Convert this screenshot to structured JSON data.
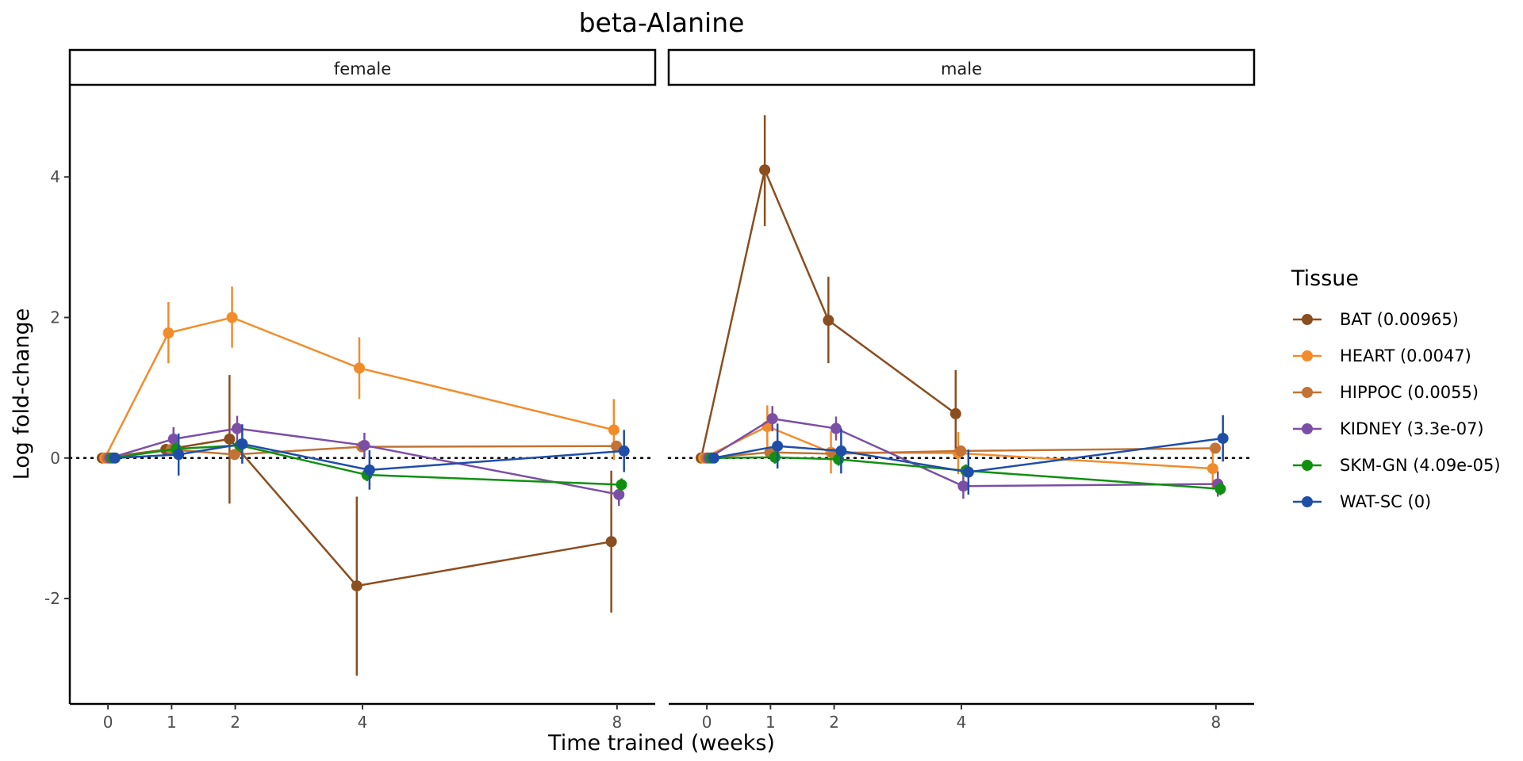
{
  "chart_data": {
    "type": "line",
    "title": "beta-Alanine",
    "xlabel": "Time trained (weeks)",
    "ylabel": "Log fold-change",
    "x_ticks": [
      0,
      1,
      2,
      4,
      8
    ],
    "y_ticks": [
      -2,
      0,
      2,
      4
    ],
    "y_tick_labels": [
      "-2",
      "0",
      "2",
      "4"
    ],
    "ylim": [
      -3.5,
      5.3
    ],
    "xlim": [
      -0.6,
      8.6
    ],
    "reference_line": 0,
    "legend_title": "Tissue",
    "legend_position": "right",
    "grid": false,
    "panels": [
      {
        "label": "female",
        "series": [
          {
            "name": "BAT (0.00965)",
            "color": "#8B4E1F",
            "x": [
              0,
              1,
              2,
              4,
              8
            ],
            "y": [
              0.0,
              0.12,
              0.27,
              -1.82,
              -1.19
            ],
            "lo": [
              0.0,
              0.05,
              -0.65,
              -3.1,
              -2.2
            ],
            "hi": [
              0.0,
              0.2,
              1.18,
              -0.55,
              -0.18
            ]
          },
          {
            "name": "HEART (0.0047)",
            "color": "#F28C2B",
            "x": [
              0,
              1,
              2,
              4,
              8
            ],
            "y": [
              0.0,
              1.78,
              2.0,
              1.28,
              0.4
            ],
            "lo": [
              0.0,
              1.35,
              1.57,
              0.84,
              -0.03
            ],
            "hi": [
              0.0,
              2.22,
              2.44,
              1.72,
              0.84
            ]
          },
          {
            "name": "HIPPOC (0.0055)",
            "color": "#C27335",
            "x": [
              0,
              1,
              2,
              4,
              8
            ],
            "y": [
              0.0,
              0.12,
              0.05,
              0.16,
              0.17
            ],
            "lo": [
              0.0,
              0.05,
              -0.02,
              0.09,
              0.1
            ],
            "hi": [
              0.0,
              0.19,
              0.12,
              0.23,
              0.24
            ]
          },
          {
            "name": "KIDNEY (3.3e-07)",
            "color": "#7B4FA6",
            "x": [
              0,
              1,
              2,
              4,
              8
            ],
            "y": [
              0.0,
              0.27,
              0.42,
              0.18,
              -0.52
            ],
            "lo": [
              0.0,
              0.1,
              0.24,
              0.0,
              -0.68
            ],
            "hi": [
              0.0,
              0.44,
              0.6,
              0.36,
              -0.36
            ]
          },
          {
            "name": "SKM-GN (4.09e-05)",
            "color": "#109010",
            "x": [
              0,
              1,
              2,
              4,
              8
            ],
            "y": [
              0.0,
              0.13,
              0.18,
              -0.24,
              -0.38
            ],
            "lo": [
              0.0,
              0.04,
              0.09,
              -0.33,
              -0.47
            ],
            "hi": [
              0.0,
              0.22,
              0.27,
              -0.15,
              -0.29
            ]
          },
          {
            "name": "WAT-SC (0)",
            "color": "#1F4EA8",
            "x": [
              0,
              1,
              2,
              4,
              8
            ],
            "y": [
              0.0,
              0.05,
              0.2,
              -0.17,
              0.1
            ],
            "lo": [
              0.0,
              -0.25,
              -0.08,
              -0.45,
              -0.2
            ],
            "hi": [
              0.0,
              0.35,
              0.48,
              0.11,
              0.4
            ]
          }
        ]
      },
      {
        "label": "male",
        "series": [
          {
            "name": "BAT (0.00965)",
            "color": "#8B4E1F",
            "x": [
              0,
              1,
              2,
              4,
              8
            ],
            "y": [
              0.0,
              4.1,
              1.96,
              0.63,
              null
            ],
            "lo": [
              0.0,
              3.3,
              1.35,
              0.0,
              null
            ],
            "hi": [
              0.0,
              4.88,
              2.58,
              1.25,
              null
            ]
          },
          {
            "name": "HEART (0.0047)",
            "color": "#F28C2B",
            "x": [
              0,
              1,
              2,
              4,
              8
            ],
            "y": [
              0.0,
              0.45,
              0.08,
              0.07,
              -0.15
            ],
            "lo": [
              0.0,
              0.15,
              -0.22,
              -0.23,
              -0.45
            ],
            "hi": [
              0.0,
              0.75,
              0.38,
              0.37,
              0.15
            ]
          },
          {
            "name": "HIPPOC (0.0055)",
            "color": "#C27335",
            "x": [
              0,
              1,
              2,
              4,
              8
            ],
            "y": [
              0.0,
              0.08,
              0.06,
              0.1,
              0.14
            ],
            "lo": [
              0.0,
              0.02,
              0.0,
              0.04,
              0.08
            ],
            "hi": [
              0.0,
              0.14,
              0.12,
              0.16,
              0.2
            ]
          },
          {
            "name": "KIDNEY (3.3e-07)",
            "color": "#7B4FA6",
            "x": [
              0,
              1,
              2,
              4,
              8
            ],
            "y": [
              0.0,
              0.56,
              0.42,
              -0.4,
              -0.37
            ],
            "lo": [
              0.0,
              0.38,
              0.25,
              -0.58,
              -0.55
            ],
            "hi": [
              0.0,
              0.74,
              0.59,
              -0.22,
              -0.19
            ]
          },
          {
            "name": "SKM-GN (4.09e-05)",
            "color": "#109010",
            "x": [
              0,
              1,
              2,
              4,
              8
            ],
            "y": [
              0.0,
              0.01,
              -0.02,
              -0.18,
              -0.44
            ],
            "lo": [
              0.0,
              -0.08,
              -0.11,
              -0.27,
              -0.53
            ],
            "hi": [
              0.0,
              0.1,
              0.07,
              -0.09,
              -0.35
            ]
          },
          {
            "name": "WAT-SC (0)",
            "color": "#1F4EA8",
            "x": [
              0,
              1,
              2,
              4,
              8
            ],
            "y": [
              0.0,
              0.17,
              0.1,
              -0.2,
              0.28
            ],
            "lo": [
              0.0,
              -0.15,
              -0.22,
              -0.52,
              -0.05
            ],
            "hi": [
              0.0,
              0.49,
              0.42,
              0.12,
              0.61
            ]
          }
        ]
      }
    ]
  }
}
